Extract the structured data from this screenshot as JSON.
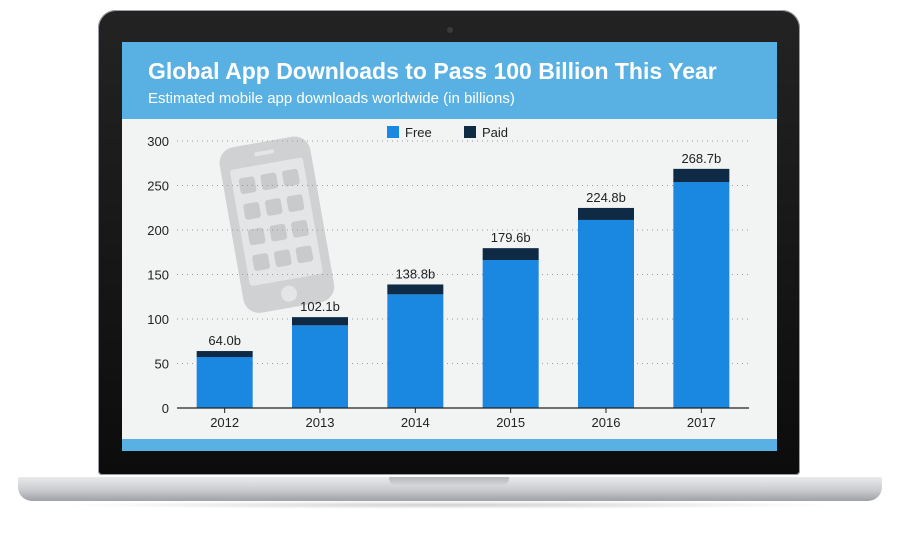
{
  "chart_data": {
    "type": "bar",
    "title": "Global App Downloads to Pass 100 Billion This Year",
    "subtitle": "Estimated mobile app downloads worldwide (in billions)",
    "categories": [
      "2012",
      "2013",
      "2014",
      "2015",
      "2016",
      "2017"
    ],
    "stacked": true,
    "series": [
      {
        "name": "Free",
        "color": "#1a87e0",
        "values": [
          57.3,
          92.9,
          127.7,
          166.3,
          211.3,
          253.9
        ]
      },
      {
        "name": "Paid",
        "color": "#0e2a45",
        "values": [
          6.7,
          9.2,
          11.1,
          13.3,
          13.5,
          14.8
        ]
      }
    ],
    "totals_labels": [
      "64.0b",
      "102.1b",
      "138.8b",
      "179.6b",
      "224.8b",
      "268.7b"
    ],
    "ylim": [
      0,
      300
    ],
    "yticks": [
      "0",
      "50",
      "100",
      "150",
      "200",
      "250",
      "300"
    ],
    "grid": true,
    "legend_position": "top-center",
    "background_illustration": "smartphone-with-app-icons"
  }
}
